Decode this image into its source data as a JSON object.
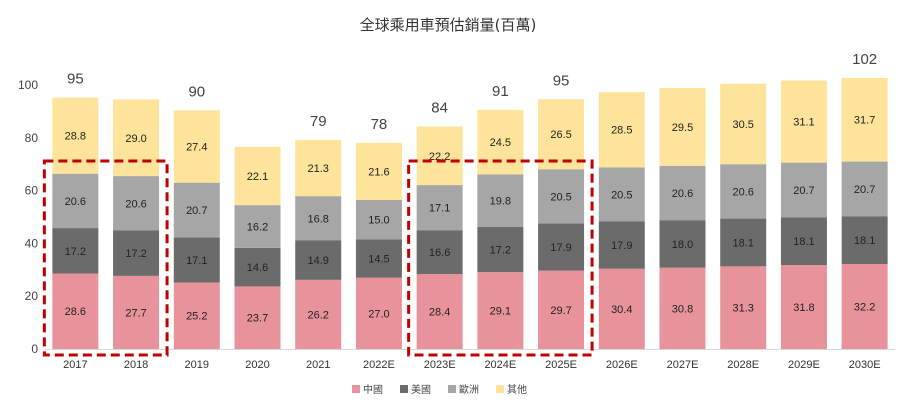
{
  "chart_data": {
    "type": "bar",
    "stacked": true,
    "title": "全球乘用車預估銷量(百萬)",
    "xlabel": "",
    "ylabel": "",
    "ylim": [
      0,
      100
    ],
    "yticks": [
      "0",
      "20",
      "40",
      "60",
      "80",
      "100"
    ],
    "grid": false,
    "legend_position": "bottom",
    "categories": [
      "2017",
      "2018",
      "2019",
      "2020",
      "2021",
      "2022E",
      "2023E",
      "2024E",
      "2025E",
      "2026E",
      "2027E",
      "2028E",
      "2029E",
      "2030E"
    ],
    "series": [
      {
        "name": "中國",
        "color": "#e8939c",
        "values": [
          28.6,
          27.7,
          25.2,
          23.7,
          26.2,
          27.0,
          28.4,
          29.1,
          29.7,
          30.4,
          30.8,
          31.3,
          31.8,
          32.2
        ]
      },
      {
        "name": "美國",
        "color": "#6b6b6b",
        "values": [
          17.2,
          17.2,
          17.1,
          14.6,
          14.9,
          14.5,
          16.6,
          17.2,
          17.9,
          17.9,
          18.0,
          18.1,
          18.1,
          18.1
        ]
      },
      {
        "name": "歐洲",
        "color": "#a6a6a6",
        "values": [
          20.6,
          20.6,
          20.7,
          16.2,
          16.8,
          15.0,
          17.1,
          19.8,
          20.5,
          20.5,
          20.6,
          20.6,
          20.7,
          20.7
        ]
      },
      {
        "name": "其他",
        "color": "#fde49a",
        "values": [
          28.8,
          29.0,
          27.4,
          22.1,
          21.3,
          21.6,
          22.2,
          24.5,
          26.5,
          28.5,
          29.5,
          30.5,
          31.1,
          31.7
        ]
      }
    ],
    "totals": [
      "95",
      "",
      "90",
      "",
      "79",
      "78",
      "84",
      "91",
      "95",
      "",
      "",
      "",
      "",
      "102"
    ],
    "highlight_groups": [
      {
        "start": "2017",
        "end": "2018",
        "color": "#c00000"
      },
      {
        "start": "2023E",
        "end": "2025E",
        "color": "#c00000"
      }
    ]
  }
}
